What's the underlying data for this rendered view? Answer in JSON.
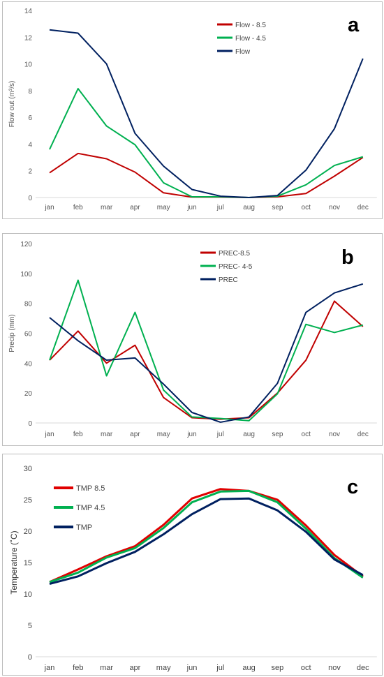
{
  "chart_data": [
    {
      "type": "line",
      "panel_label": "a",
      "ylabel": "Flow out (m³/s)",
      "ylim": [
        0,
        14
      ],
      "yticks": [
        0,
        2,
        4,
        6,
        8,
        10,
        12,
        14
      ],
      "categories": [
        "jan",
        "feb",
        "mar",
        "apr",
        "may",
        "jun",
        "jul",
        "aug",
        "sep",
        "oct",
        "nov",
        "dec"
      ],
      "grid": false,
      "legend_position": "top-center",
      "series": [
        {
          "name": "Flow - 8.5",
          "color": "#c00000",
          "values": [
            1.85,
            3.3,
            2.9,
            1.9,
            0.35,
            0.03,
            0.03,
            0.0,
            0.05,
            0.3,
            1.6,
            3.0
          ]
        },
        {
          "name": "Flow - 4.5",
          "color": "#00b050",
          "values": [
            3.6,
            8.15,
            5.35,
            3.95,
            1.1,
            0.05,
            0.05,
            0.0,
            0.1,
            0.95,
            2.4,
            3.05
          ]
        },
        {
          "name": "Flow",
          "color": "#002060",
          "values": [
            12.55,
            12.3,
            10.0,
            4.8,
            2.35,
            0.6,
            0.1,
            0.0,
            0.15,
            2.05,
            5.15,
            10.4
          ]
        }
      ]
    },
    {
      "type": "line",
      "panel_label": "b",
      "ylabel": "Precip (mm)",
      "ylim": [
        0,
        120
      ],
      "yticks": [
        0,
        20,
        40,
        60,
        80,
        100,
        120
      ],
      "categories": [
        "jan",
        "feb",
        "mar",
        "apr",
        "may",
        "jun",
        "jul",
        "aug",
        "sep",
        "oct",
        "nov",
        "dec"
      ],
      "grid": false,
      "legend_position": "top-center",
      "series": [
        {
          "name": "PREC-8.5",
          "color": "#c00000",
          "values": [
            42,
            61.5,
            40,
            52,
            17,
            3.5,
            2.5,
            3.5,
            20,
            42,
            81.5,
            64.5
          ]
        },
        {
          "name": "PREC- 4-5",
          "color": "#00b050",
          "values": [
            42,
            95.5,
            31.5,
            74,
            22,
            4,
            3,
            1.5,
            19.5,
            66,
            60.5,
            65.5
          ]
        },
        {
          "name": "PREC",
          "color": "#002060",
          "values": [
            70.5,
            55,
            42,
            43.5,
            26,
            7,
            0.5,
            4,
            26.5,
            74,
            87,
            93
          ]
        }
      ]
    },
    {
      "type": "line",
      "panel_label": "c",
      "ylabel": "Temperature  (˚C)",
      "ylim": [
        0,
        30
      ],
      "yticks": [
        0,
        5,
        10,
        15,
        20,
        25,
        30
      ],
      "categories": [
        "jan",
        "feb",
        "mar",
        "apr",
        "may",
        "jun",
        "jul",
        "aug",
        "sep",
        "oct",
        "nov",
        "dec"
      ],
      "grid": false,
      "legend_position": "top-left",
      "series": [
        {
          "name": "TMP 8.5",
          "color": "#e00000",
          "values": [
            11.9,
            13.9,
            16.0,
            17.6,
            21.0,
            25.2,
            26.7,
            26.4,
            25.0,
            20.9,
            16.2,
            12.8
          ]
        },
        {
          "name": "TMP 4.5",
          "color": "#00b050",
          "values": [
            11.9,
            13.4,
            15.8,
            17.3,
            20.5,
            24.6,
            26.3,
            26.4,
            24.6,
            20.4,
            15.7,
            12.6
          ]
        },
        {
          "name": "TMP",
          "color": "#002060",
          "values": [
            11.6,
            12.8,
            14.9,
            16.7,
            19.5,
            22.7,
            25.1,
            25.2,
            23.3,
            19.9,
            15.5,
            13.0
          ]
        }
      ]
    }
  ]
}
